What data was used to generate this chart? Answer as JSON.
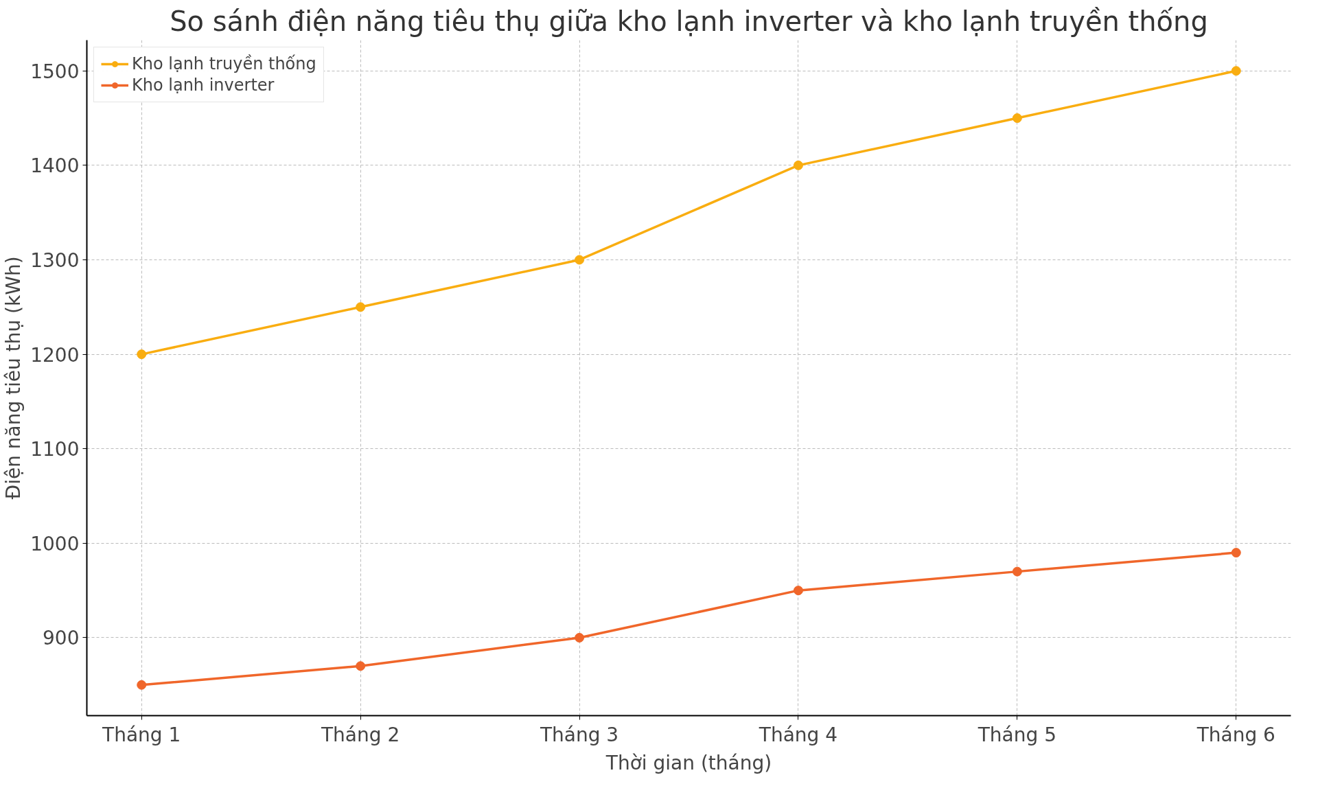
{
  "chart_data": {
    "type": "line",
    "title": "So sánh điện năng tiêu thụ giữa kho lạnh inverter và kho lạnh truyền thống",
    "xlabel": "Thời gian (tháng)",
    "ylabel": "Điện năng tiêu thụ (kWh)",
    "categories": [
      "Tháng 1",
      "Tháng 2",
      "Tháng 3",
      "Tháng 4",
      "Tháng 5",
      "Tháng 6"
    ],
    "series": [
      {
        "name": "Kho lạnh truyền thống",
        "color": "#f9ad10",
        "values": [
          1200,
          1250,
          1300,
          1400,
          1450,
          1500
        ]
      },
      {
        "name": "Kho lạnh inverter",
        "color": "#f0662a",
        "values": [
          850,
          870,
          900,
          950,
          970,
          990
        ]
      }
    ],
    "ylim": [
      817.5,
      1532.5
    ],
    "yticks": [
      900,
      1000,
      1100,
      1200,
      1300,
      1400,
      1500
    ],
    "grid": true,
    "legend": "top left",
    "marker": "circle",
    "line_style": "solid"
  }
}
